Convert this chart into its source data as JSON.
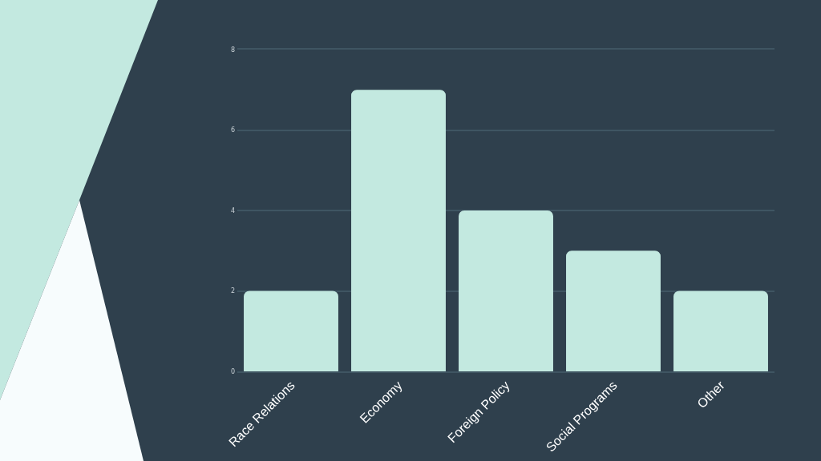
{
  "chart_data": {
    "type": "bar",
    "categories": [
      "Race Relations",
      "Economy",
      "Foreign Policy",
      "Social Programs",
      "Other"
    ],
    "values": [
      2,
      7,
      4,
      3,
      2
    ],
    "color": "#c3e9e0",
    "ylim": [
      0,
      8
    ],
    "yticks": [
      0,
      2,
      4,
      6,
      8
    ],
    "grid": "y"
  }
}
